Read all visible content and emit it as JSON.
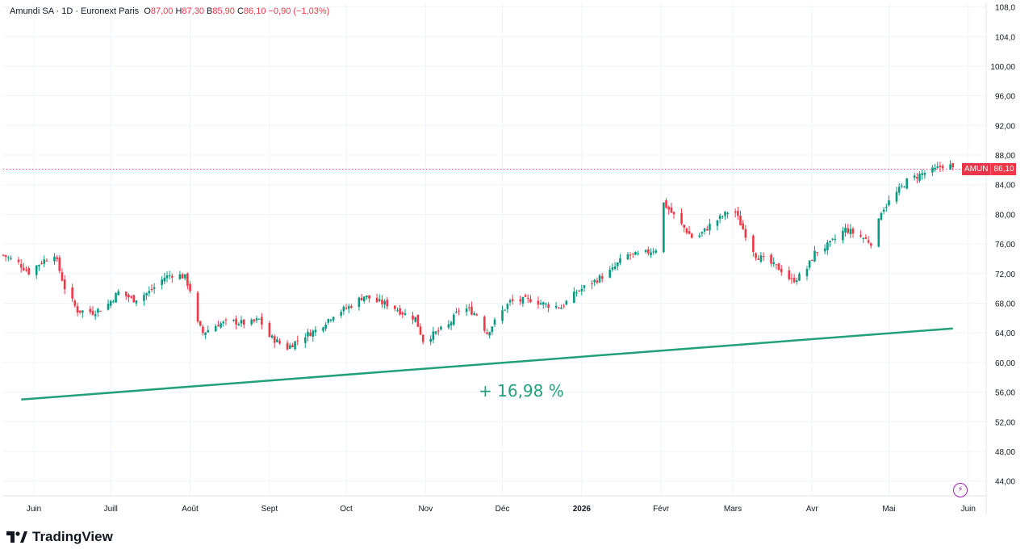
{
  "legend": {
    "symbol": "Amundi SA · 1D · Euronext Paris",
    "o_label": "O",
    "o_value": "87,00",
    "h_label": "H",
    "h_value": "87,30",
    "b_label": "B",
    "b_value": "85,90",
    "c_label": "C",
    "c_value": "86,10",
    "change": "−0,90 (−1,03%)"
  },
  "last_price": {
    "ticker": "AMUN",
    "value": "86,10"
  },
  "annotation": "+ 16,98 %",
  "brand": "TradingView",
  "colors": {
    "up": "#089981",
    "down": "#f23645",
    "trend": "#22a07a",
    "grid": "#f0f3fa",
    "axis_text": "#131722"
  },
  "chart_data": {
    "type": "candlestick",
    "ylim": [
      42,
      108.5
    ],
    "y_ticks": [
      "108,0",
      "104,0",
      "100,00",
      "96,00",
      "92,00",
      "88,00",
      "84,00",
      "80,00",
      "76,00",
      "72,00",
      "68,00",
      "64,00",
      "60,00",
      "56,00",
      "52,00",
      "48,00",
      "44,00"
    ],
    "y_tick_values": [
      108,
      104,
      100,
      96,
      92,
      88,
      84,
      80,
      76,
      72,
      68,
      64,
      60,
      56,
      52,
      48,
      44
    ],
    "x_ticks": [
      "Juin",
      "Juill",
      "Août",
      "Sept",
      "Oct",
      "Nov",
      "Déc",
      "2026",
      "Févr",
      "Mars",
      "Avr",
      "Mai",
      "Juin"
    ],
    "x_tick_dates": [
      "2025-06-01",
      "2025-07-01",
      "2025-08-01",
      "2025-09-01",
      "2025-10-01",
      "2025-11-01",
      "2025-12-01",
      "2026-01-01",
      "2026-02-01",
      "2026-03-01",
      "2026-04-01",
      "2026-05-01",
      "2026-06-01"
    ],
    "x_range": [
      "2025-05-20",
      "2026-06-08"
    ],
    "last_close": 86.1,
    "trend_line": {
      "from": [
        "2025-05-27",
        55.0
      ],
      "to": [
        "2026-05-26",
        64.6
      ]
    },
    "close_path": [
      [
        "2025-05-20",
        74.5
      ],
      [
        "2025-05-26",
        73.4
      ],
      [
        "2025-05-30",
        72.2
      ],
      [
        "2025-06-04",
        73.6
      ],
      [
        "2025-06-09",
        74.7
      ],
      [
        "2025-06-13",
        70.1
      ],
      [
        "2025-06-18",
        67.0
      ],
      [
        "2025-06-24",
        66.8
      ],
      [
        "2025-06-29",
        67.5
      ],
      [
        "2025-07-04",
        69.5
      ],
      [
        "2025-07-10",
        68.5
      ],
      [
        "2025-07-16",
        69.5
      ],
      [
        "2025-07-22",
        71.5
      ],
      [
        "2025-07-26",
        72.0
      ],
      [
        "2025-07-30",
        71.5
      ],
      [
        "2025-08-01",
        69.8
      ],
      [
        "2025-08-02",
        66.5
      ],
      [
        "2025-08-06",
        64.0
      ],
      [
        "2025-08-12",
        65.2
      ],
      [
        "2025-08-18",
        65.5
      ],
      [
        "2025-08-24",
        65.2
      ],
      [
        "2025-08-28",
        65.8
      ],
      [
        "2025-09-01",
        63.5
      ],
      [
        "2025-09-08",
        62.0
      ],
      [
        "2025-09-14",
        63.5
      ],
      [
        "2025-09-20",
        64.5
      ],
      [
        "2025-09-26",
        66.5
      ],
      [
        "2025-10-02",
        67.5
      ],
      [
        "2025-10-08",
        69.0
      ],
      [
        "2025-10-13",
        68.2
      ],
      [
        "2025-10-18",
        67.8
      ],
      [
        "2025-10-24",
        66.5
      ],
      [
        "2025-10-28",
        66.0
      ],
      [
        "2025-10-31",
        63.0
      ],
      [
        "2025-11-05",
        64.0
      ],
      [
        "2025-11-10",
        65.0
      ],
      [
        "2025-11-15",
        67.6
      ],
      [
        "2025-11-21",
        66.5
      ],
      [
        "2025-11-25",
        64.0
      ],
      [
        "2025-11-30",
        66.5
      ],
      [
        "2025-12-04",
        68.2
      ],
      [
        "2025-12-12",
        68.5
      ],
      [
        "2025-12-18",
        67.8
      ],
      [
        "2025-12-24",
        67.5
      ],
      [
        "2025-12-30",
        69.5
      ],
      [
        "2026-01-06",
        71.0
      ],
      [
        "2026-01-13",
        72.5
      ],
      [
        "2026-01-18",
        74.5
      ],
      [
        "2026-01-24",
        74.5
      ],
      [
        "2026-01-31",
        75.5
      ],
      [
        "2026-02-02",
        81.5
      ],
      [
        "2026-02-08",
        79.0
      ],
      [
        "2026-02-14",
        76.5
      ],
      [
        "2026-02-20",
        78.5
      ],
      [
        "2026-02-26",
        80.0
      ],
      [
        "2026-03-01",
        81.0
      ],
      [
        "2026-03-05",
        78.0
      ],
      [
        "2026-03-10",
        74.5
      ],
      [
        "2026-03-15",
        73.5
      ],
      [
        "2026-03-20",
        72.5
      ],
      [
        "2026-03-24",
        71.0
      ],
      [
        "2026-03-29",
        72.0
      ],
      [
        "2026-04-02",
        74.8
      ],
      [
        "2026-04-08",
        76.0
      ],
      [
        "2026-04-14",
        78.0
      ],
      [
        "2026-04-20",
        77.0
      ],
      [
        "2026-04-25",
        76.0
      ],
      [
        "2026-04-28",
        80.5
      ],
      [
        "2026-05-03",
        82.5
      ],
      [
        "2026-05-08",
        84.5
      ],
      [
        "2026-05-14",
        85.5
      ],
      [
        "2026-05-19",
        86.0
      ],
      [
        "2026-05-24",
        87.0
      ],
      [
        "2026-05-26",
        86.1
      ]
    ]
  }
}
